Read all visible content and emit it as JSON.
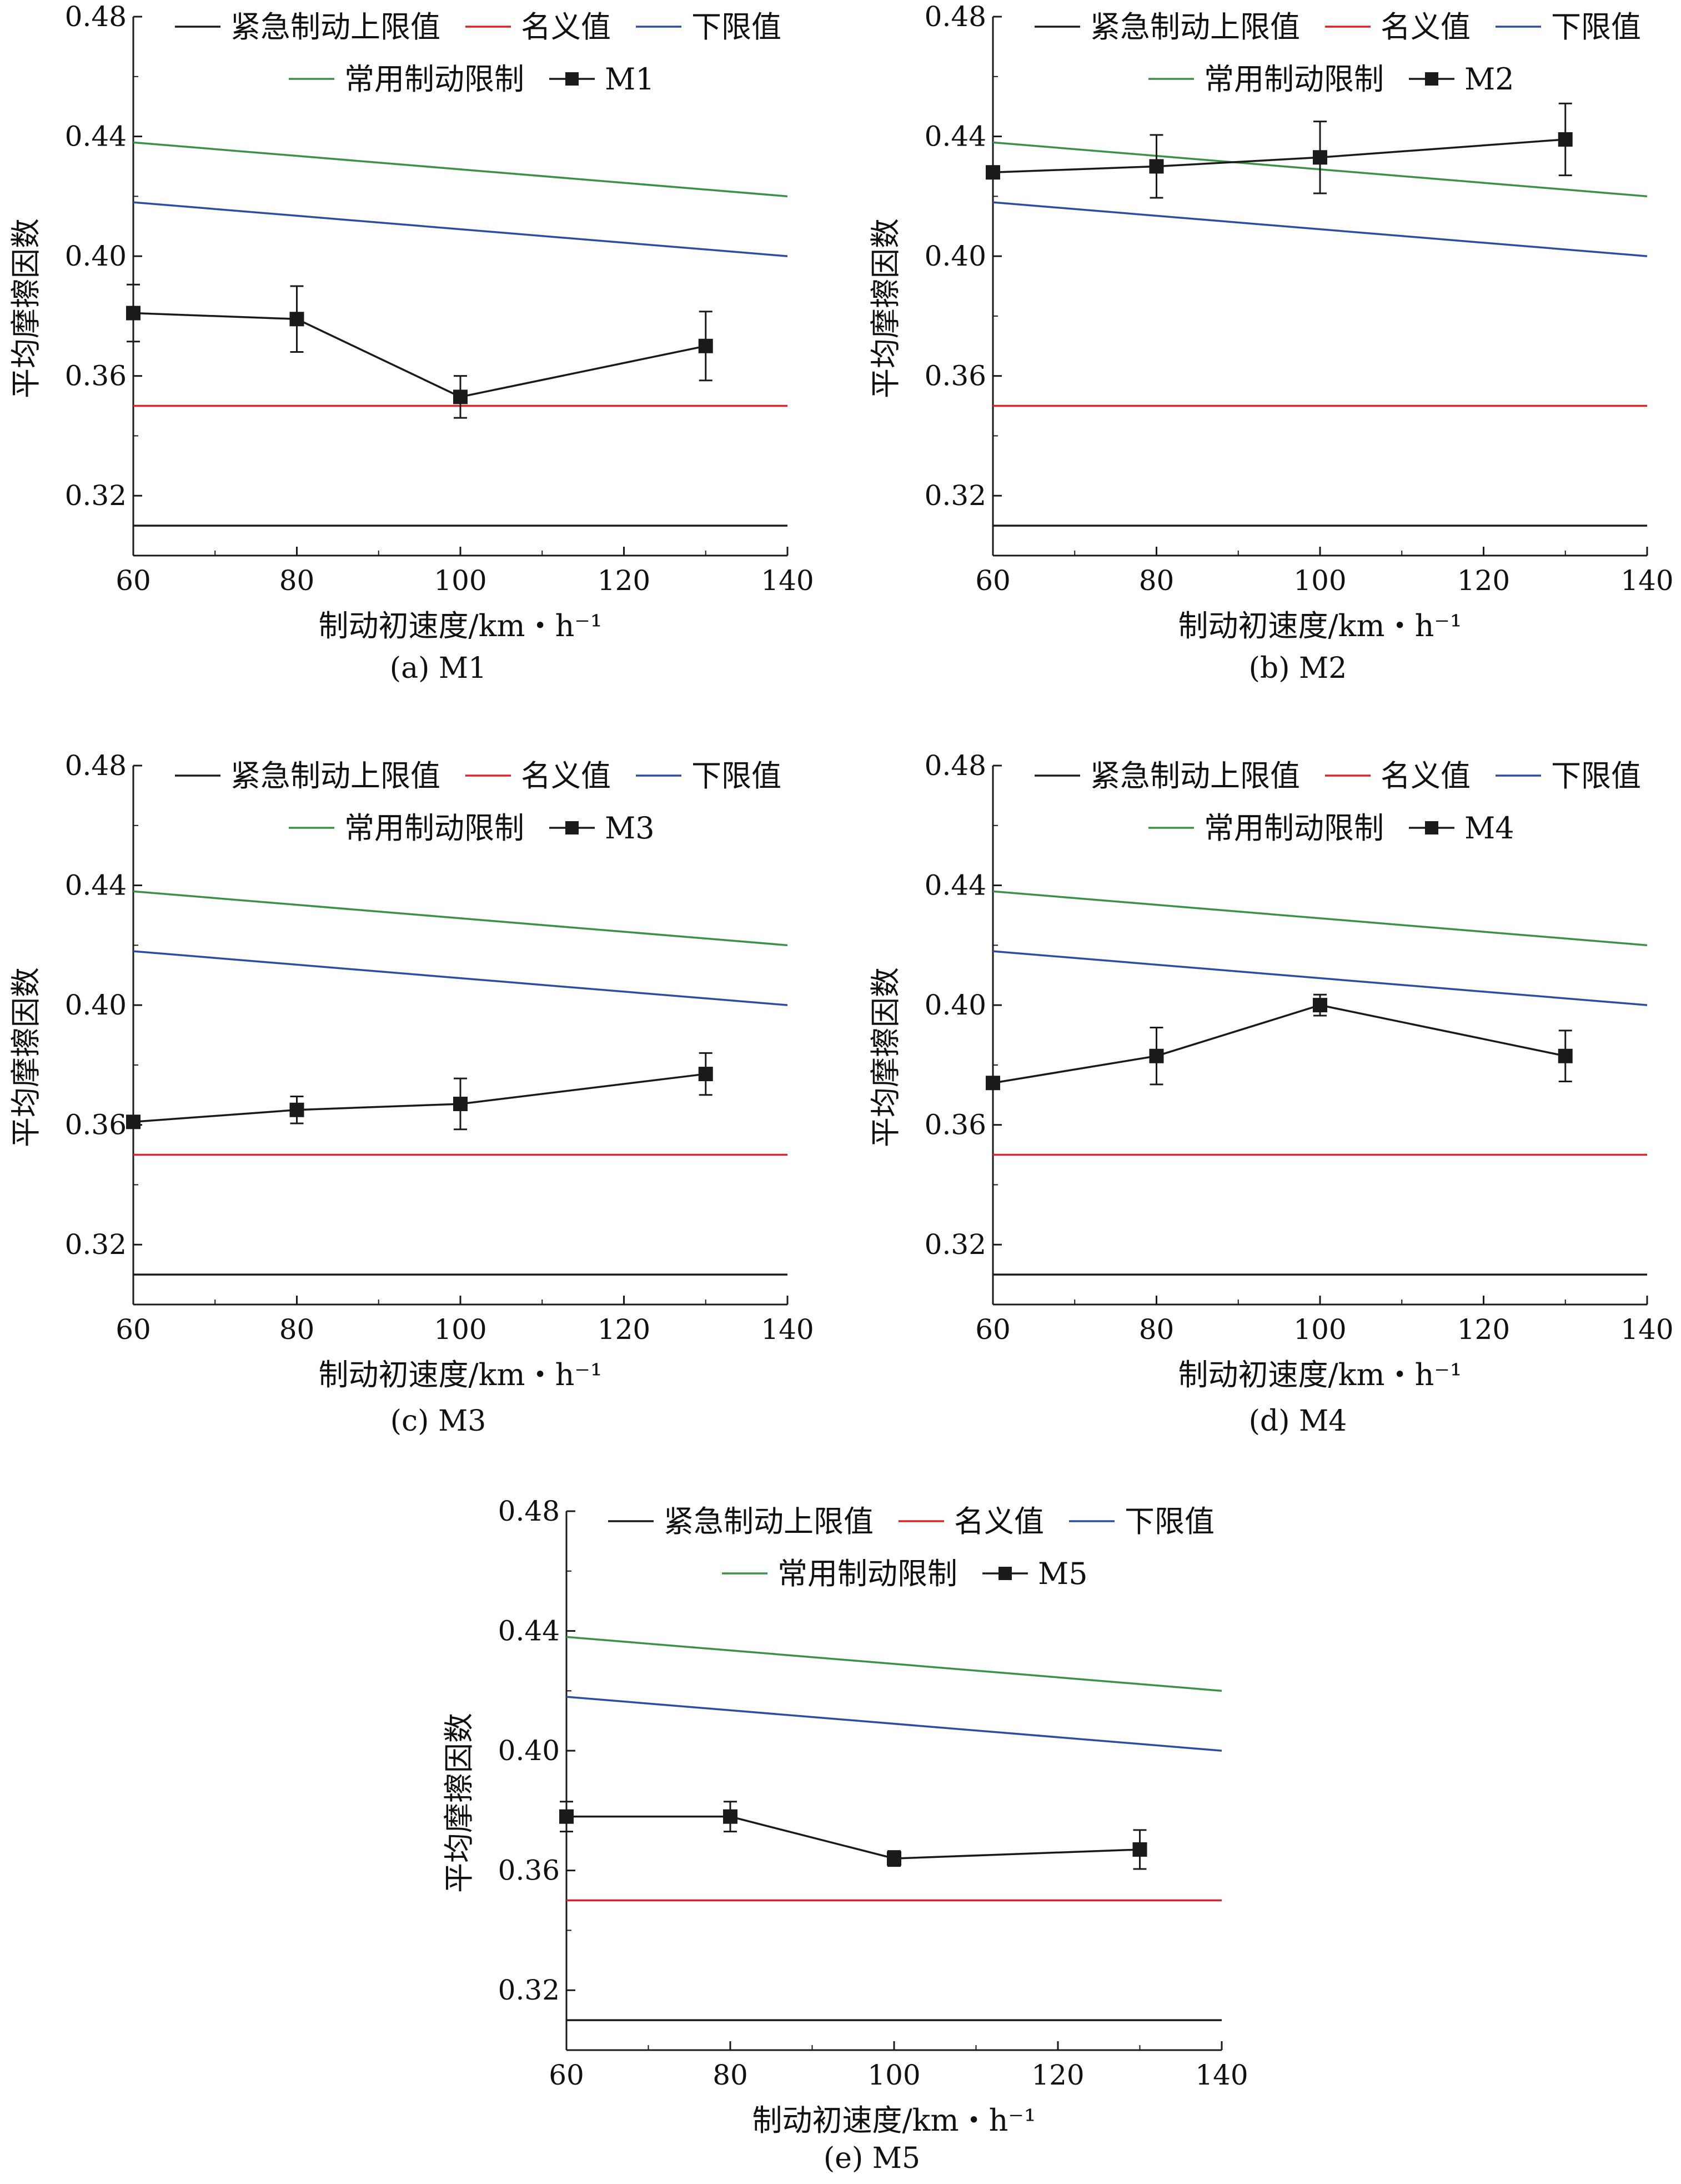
{
  "figure": {
    "colors": {
      "upper_limit": "#1a1a1a",
      "nominal": "#d9252b",
      "lower_limit": "#2c4da1",
      "service_limit": "#3b9147",
      "measured": "#1a1a1a",
      "axis": "#1a1a1a"
    }
  },
  "chart_data": [
    {
      "type": "line",
      "panel": "M1",
      "caption": "(a) M1",
      "xlabel": "制动初速度/km・h⁻¹",
      "ylabel": "平均摩擦因数",
      "xlim": [
        60,
        140
      ],
      "ylim": [
        0.3,
        0.48
      ],
      "xticks": [
        "60",
        "80",
        "100",
        "120",
        "140"
      ],
      "yticks": [
        "0.32",
        "0.36",
        "0.40",
        "0.44",
        "0.48"
      ],
      "grid": false,
      "legend_placement": "top",
      "series": [
        {
          "name": "紧急制动上限值",
          "x": [
            60,
            140
          ],
          "y": [
            0.31,
            0.31
          ]
        },
        {
          "name": "名义值",
          "x": [
            60,
            140
          ],
          "y": [
            0.35,
            0.35
          ]
        },
        {
          "name": "下限值",
          "x": [
            60,
            140
          ],
          "y": [
            0.418,
            0.4
          ]
        },
        {
          "name": "常用制动限制",
          "x": [
            60,
            140
          ],
          "y": [
            0.438,
            0.42
          ]
        },
        {
          "name": "M1",
          "x": [
            60,
            80,
            100,
            130
          ],
          "y": [
            0.381,
            0.379,
            0.353,
            0.37
          ],
          "err": [
            0.0095,
            0.011,
            0.007,
            0.0115
          ]
        }
      ]
    },
    {
      "type": "line",
      "panel": "M2",
      "caption": "(b) M2",
      "xlabel": "制动初速度/km・h⁻¹",
      "ylabel": "平均摩擦因数",
      "xlim": [
        60,
        140
      ],
      "ylim": [
        0.3,
        0.48
      ],
      "xticks": [
        "60",
        "80",
        "100",
        "120",
        "140"
      ],
      "yticks": [
        "0.32",
        "0.36",
        "0.40",
        "0.44",
        "0.48"
      ],
      "grid": false,
      "legend_placement": "top",
      "series": [
        {
          "name": "紧急制动上限值",
          "x": [
            60,
            140
          ],
          "y": [
            0.31,
            0.31
          ]
        },
        {
          "name": "名义值",
          "x": [
            60,
            140
          ],
          "y": [
            0.35,
            0.35
          ]
        },
        {
          "name": "下限值",
          "x": [
            60,
            140
          ],
          "y": [
            0.418,
            0.4
          ]
        },
        {
          "name": "常用制动限制",
          "x": [
            60,
            140
          ],
          "y": [
            0.438,
            0.42
          ]
        },
        {
          "name": "M2",
          "x": [
            60,
            80,
            100,
            130
          ],
          "y": [
            0.428,
            0.43,
            0.433,
            0.439
          ],
          "err": [
            0.0,
            0.0105,
            0.012,
            0.012
          ]
        }
      ]
    },
    {
      "type": "line",
      "panel": "M3",
      "caption": "(c) M3",
      "xlabel": "制动初速度/km・h⁻¹",
      "ylabel": "平均摩擦因数",
      "xlim": [
        60,
        140
      ],
      "ylim": [
        0.3,
        0.48
      ],
      "xticks": [
        "60",
        "80",
        "100",
        "120",
        "140"
      ],
      "yticks": [
        "0.32",
        "0.36",
        "0.40",
        "0.44",
        "0.48"
      ],
      "grid": false,
      "legend_placement": "top",
      "series": [
        {
          "name": "紧急制动上限值",
          "x": [
            60,
            140
          ],
          "y": [
            0.31,
            0.31
          ]
        },
        {
          "name": "名义值",
          "x": [
            60,
            140
          ],
          "y": [
            0.35,
            0.35
          ]
        },
        {
          "name": "下限值",
          "x": [
            60,
            140
          ],
          "y": [
            0.418,
            0.4
          ]
        },
        {
          "name": "常用制动限制",
          "x": [
            60,
            140
          ],
          "y": [
            0.438,
            0.42
          ]
        },
        {
          "name": "M3",
          "x": [
            60,
            80,
            100,
            130
          ],
          "y": [
            0.361,
            0.365,
            0.367,
            0.377
          ],
          "err": [
            0.0,
            0.0045,
            0.0085,
            0.007
          ]
        }
      ]
    },
    {
      "type": "line",
      "panel": "M4",
      "caption": "(d) M4",
      "xlabel": "制动初速度/km・h⁻¹",
      "ylabel": "平均摩擦因数",
      "xlim": [
        60,
        140
      ],
      "ylim": [
        0.3,
        0.48
      ],
      "xticks": [
        "60",
        "80",
        "100",
        "120",
        "140"
      ],
      "yticks": [
        "0.32",
        "0.36",
        "0.40",
        "0.44",
        "0.48"
      ],
      "grid": false,
      "legend_placement": "top",
      "series": [
        {
          "name": "紧急制动上限值",
          "x": [
            60,
            140
          ],
          "y": [
            0.31,
            0.31
          ]
        },
        {
          "name": "名义值",
          "x": [
            60,
            140
          ],
          "y": [
            0.35,
            0.35
          ]
        },
        {
          "name": "下限值",
          "x": [
            60,
            140
          ],
          "y": [
            0.418,
            0.4
          ]
        },
        {
          "name": "常用制动限制",
          "x": [
            60,
            140
          ],
          "y": [
            0.438,
            0.42
          ]
        },
        {
          "name": "M4",
          "x": [
            60,
            80,
            100,
            130
          ],
          "y": [
            0.374,
            0.383,
            0.4,
            0.383
          ],
          "err": [
            0.0,
            0.0095,
            0.0035,
            0.0085
          ]
        }
      ]
    },
    {
      "type": "line",
      "panel": "M5",
      "caption": "(e) M5",
      "xlabel": "制动初速度/km・h⁻¹",
      "ylabel": "平均摩擦因数",
      "xlim": [
        60,
        140
      ],
      "ylim": [
        0.3,
        0.48
      ],
      "xticks": [
        "60",
        "80",
        "100",
        "120",
        "140"
      ],
      "yticks": [
        "0.32",
        "0.36",
        "0.40",
        "0.44",
        "0.48"
      ],
      "grid": false,
      "legend_placement": "top",
      "series": [
        {
          "name": "紧急制动上限值",
          "x": [
            60,
            140
          ],
          "y": [
            0.31,
            0.31
          ]
        },
        {
          "name": "名义值",
          "x": [
            60,
            140
          ],
          "y": [
            0.35,
            0.35
          ]
        },
        {
          "name": "下限值",
          "x": [
            60,
            140
          ],
          "y": [
            0.418,
            0.4
          ]
        },
        {
          "name": "常用制动限制",
          "x": [
            60,
            140
          ],
          "y": [
            0.438,
            0.42
          ]
        },
        {
          "name": "M5",
          "x": [
            60,
            80,
            100,
            130
          ],
          "y": [
            0.378,
            0.378,
            0.364,
            0.367
          ],
          "err": [
            0.005,
            0.005,
            0.0025,
            0.0065
          ]
        }
      ]
    }
  ]
}
